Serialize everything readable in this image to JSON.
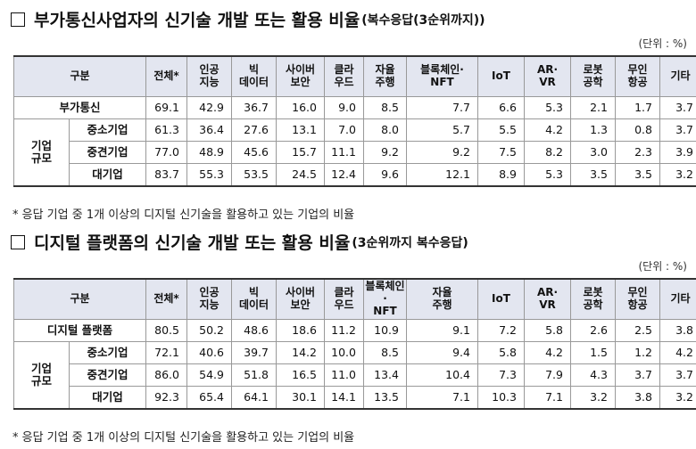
{
  "sections": [
    {
      "title": "부가통신사업자의 신기술 개발 또는 활용 비율",
      "title_suffix": "(복수응답(3순위까지))",
      "unit": "(단위 : %)",
      "header": [
        "구분",
        "전체*",
        "인공\n지능",
        "빅\n데이터",
        "사이버\n보안",
        "클라\n우드",
        "자율\n주행",
        "블록체인·\nNFT",
        "IoT",
        "AR·\nVR",
        "로봇\n공학",
        "무인\n항공",
        "기타"
      ],
      "total": {
        "label": "부가통신",
        "values": [
          "69.1",
          "42.9",
          "36.7",
          "16.0",
          "9.0",
          "8.5",
          "7.7",
          "6.6",
          "5.3",
          "2.1",
          "1.7",
          "3.7"
        ]
      },
      "group": "기업\n규모",
      "rows": [
        {
          "label": "중소기업",
          "values": [
            "61.3",
            "36.4",
            "27.6",
            "13.1",
            "7.0",
            "8.0",
            "5.7",
            "5.5",
            "4.2",
            "1.3",
            "0.8",
            "3.7"
          ]
        },
        {
          "label": "중견기업",
          "values": [
            "77.0",
            "48.9",
            "45.6",
            "15.7",
            "11.1",
            "9.2",
            "9.2",
            "7.5",
            "8.2",
            "3.0",
            "2.3",
            "3.9"
          ]
        },
        {
          "label": "대기업",
          "values": [
            "83.7",
            "55.3",
            "53.5",
            "24.5",
            "12.4",
            "9.6",
            "12.1",
            "8.9",
            "5.3",
            "3.5",
            "3.5",
            "3.2"
          ]
        }
      ],
      "footnote": "* 응답 기업 중 1개 이상의 디지털 신기술을 활용하고 있는 기업의 비율"
    },
    {
      "title": "디지털 플랫폼의 신기술 개발 또는 활용 비율",
      "title_suffix": "(3순위까지 복수응답)",
      "unit": "(단위 : %)",
      "header": [
        "구분",
        "전체*",
        "인공\n지능",
        "빅\n데이터",
        "사이버\n보안",
        "클라\n우드",
        "블록체인·\nNFT",
        "자율\n주행",
        "IoT",
        "AR·\nVR",
        "로봇\n공학",
        "무인\n항공",
        "기타"
      ],
      "total": {
        "label": "디지털 플랫폼",
        "values": [
          "80.5",
          "50.2",
          "48.6",
          "18.6",
          "11.2",
          "10.9",
          "9.1",
          "7.2",
          "5.8",
          "2.6",
          "2.5",
          "3.8"
        ]
      },
      "group": "기업\n규모",
      "rows": [
        {
          "label": "중소기업",
          "values": [
            "72.1",
            "40.6",
            "39.7",
            "14.2",
            "10.0",
            "8.5",
            "9.4",
            "5.8",
            "4.2",
            "1.5",
            "1.2",
            "4.2"
          ]
        },
        {
          "label": "중견기업",
          "values": [
            "86.0",
            "54.9",
            "51.8",
            "16.5",
            "11.0",
            "13.4",
            "10.4",
            "7.3",
            "7.9",
            "4.3",
            "3.7",
            "3.7"
          ]
        },
        {
          "label": "대기업",
          "values": [
            "92.3",
            "65.4",
            "64.1",
            "30.1",
            "14.1",
            "13.5",
            "7.1",
            "10.3",
            "7.1",
            "3.2",
            "3.8",
            "3.2"
          ]
        }
      ],
      "footnote": "* 응답 기업 중 1개 이상의 디지털 신기술을 활용하고 있는 기업의 비율"
    }
  ]
}
